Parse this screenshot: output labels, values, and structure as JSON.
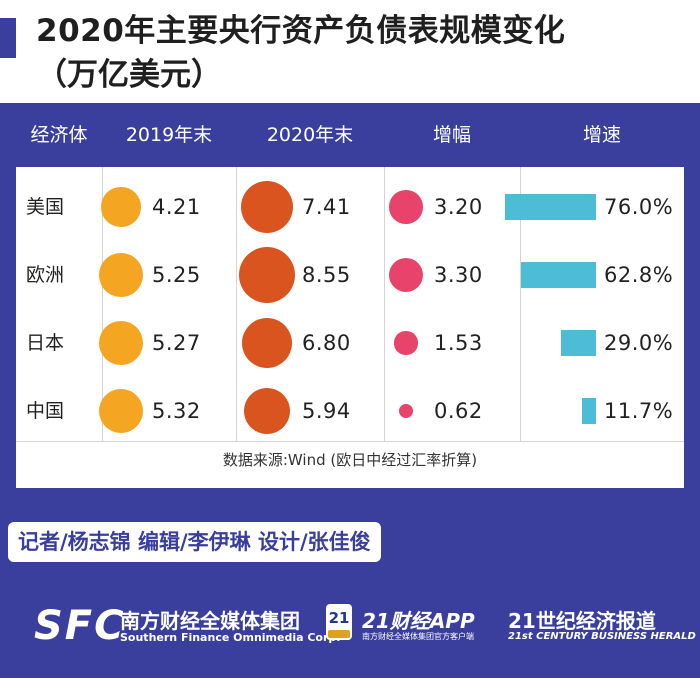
{
  "title": "2020年主要央行资产负债表规模变化",
  "subtitle": "（万亿美元）",
  "colors": {
    "navy": "#3a3f9e",
    "dot_2019": "#f4a623",
    "dot_2020": "#d9541e",
    "dot_increase": "#e8436b",
    "bar_growth": "#4dbcd6"
  },
  "chart_data": {
    "type": "table",
    "columns": [
      "经济体",
      "2019年末",
      "2020年末",
      "增幅",
      "增速"
    ],
    "rows": [
      {
        "economy": "美国",
        "y2019": 4.21,
        "y2019_label": "4.21",
        "y2020": 7.41,
        "y2020_label": "7.41",
        "increase": 3.2,
        "increase_label": "3.20",
        "growth": 76.0,
        "growth_label": "76.0%"
      },
      {
        "economy": "欧洲",
        "y2019": 5.25,
        "y2019_label": "5.25",
        "y2020": 8.55,
        "y2020_label": "8.55",
        "increase": 3.3,
        "increase_label": "3.30",
        "growth": 62.8,
        "growth_label": "62.8%"
      },
      {
        "economy": "日本",
        "y2019": 5.27,
        "y2019_label": "5.27",
        "y2020": 6.8,
        "y2020_label": "6.80",
        "increase": 1.53,
        "increase_label": "1.53",
        "growth": 29.0,
        "growth_label": "29.0%"
      },
      {
        "economy": "中国",
        "y2019": 5.32,
        "y2019_label": "5.32",
        "y2020": 5.94,
        "y2020_label": "5.94",
        "increase": 0.62,
        "increase_label": "0.62",
        "growth": 11.7,
        "growth_label": "11.7%"
      }
    ],
    "source": "数据来源:Wind (欧日中经过汇率折算)"
  },
  "credits": "记者/杨志锦  编辑/李伊琳  设计/张佳俊",
  "footer": {
    "sfc_logo": "SFC",
    "group_cn": "南方财经全媒体集团",
    "group_en": "Southern Finance Omnimedia Corp.",
    "app_badge": "21",
    "app_badge_sub": "SFC",
    "app_title": "21财经APP",
    "app_subtitle": "南方财经全媒体集团官方客户端",
    "herald_cn": "21世纪经济报道",
    "herald_en": "21st CENTURY BUSINESS HERALD"
  }
}
